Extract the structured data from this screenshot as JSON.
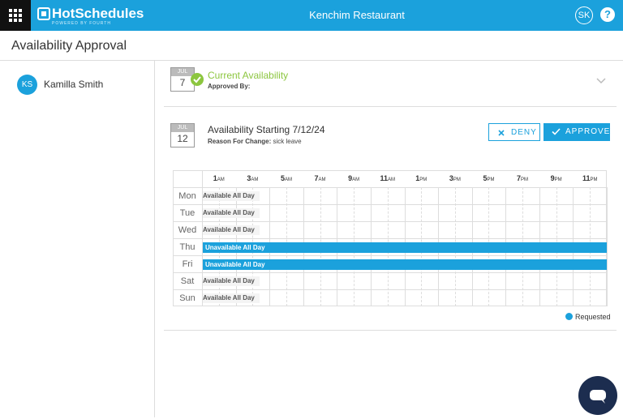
{
  "topbar": {
    "logo": "HotSchedules",
    "logo_tagline": "POWERED BY FOURTH",
    "location": "Kenchim Restaurant",
    "user_initials": "SK",
    "help": "?"
  },
  "page_title": "Availability Approval",
  "employees": [
    {
      "initials": "KS",
      "name": "Kamilla Smith"
    }
  ],
  "current": {
    "month": "JUL",
    "day": "7",
    "title": "Current Availability",
    "approved_by_label": "Approved By:"
  },
  "request": {
    "month": "JUL",
    "day": "12",
    "title": "Availability Starting 7/12/24",
    "reason_label": "Reason For Change:",
    "reason": "sick leave",
    "deny": "DENY",
    "approve": "APPROVE"
  },
  "schedule": {
    "hours": [
      {
        "num": "1",
        "suffix": "AM"
      },
      {
        "num": "3",
        "suffix": "AM"
      },
      {
        "num": "5",
        "suffix": "AM"
      },
      {
        "num": "7",
        "suffix": "AM"
      },
      {
        "num": "9",
        "suffix": "AM"
      },
      {
        "num": "11",
        "suffix": "AM"
      },
      {
        "num": "1",
        "suffix": "PM"
      },
      {
        "num": "3",
        "suffix": "PM"
      },
      {
        "num": "5",
        "suffix": "PM"
      },
      {
        "num": "7",
        "suffix": "PM"
      },
      {
        "num": "9",
        "suffix": "PM"
      },
      {
        "num": "11",
        "suffix": "PM"
      }
    ],
    "days": [
      {
        "day": "Mon",
        "status": "Available All Day",
        "available": true
      },
      {
        "day": "Tue",
        "status": "Available All Day",
        "available": true
      },
      {
        "day": "Wed",
        "status": "Available All Day",
        "available": true
      },
      {
        "day": "Thu",
        "status": "Unavailable All Day",
        "available": false
      },
      {
        "day": "Fri",
        "status": "Unavailable All Day",
        "available": false
      },
      {
        "day": "Sat",
        "status": "Available All Day",
        "available": true
      },
      {
        "day": "Sun",
        "status": "Available All Day",
        "available": true
      }
    ],
    "legend": "Requested"
  }
}
